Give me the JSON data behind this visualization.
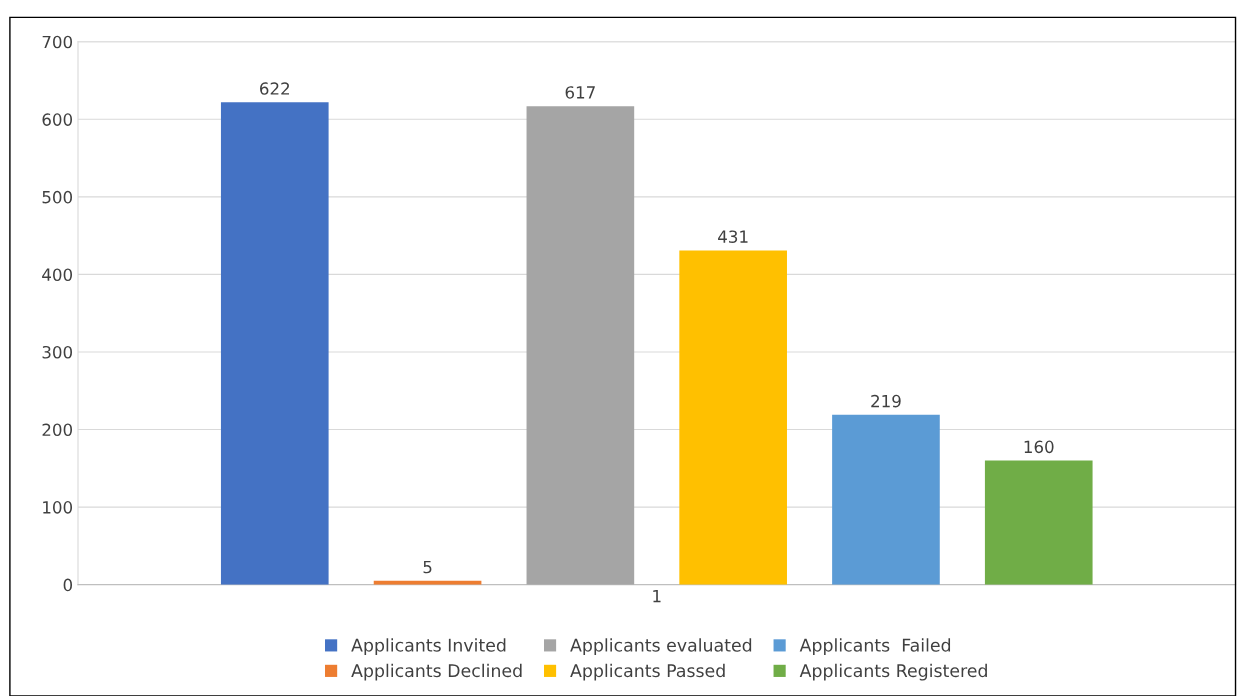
{
  "chart_data": {
    "type": "bar",
    "categories": [
      "1"
    ],
    "series": [
      {
        "name": "Applicants Invited",
        "color": "#4472c4",
        "values": [
          622
        ]
      },
      {
        "name": "Applicants Declined",
        "color": "#ed7d31",
        "values": [
          5
        ]
      },
      {
        "name": "Applicants evaluated",
        "color": "#a5a5a5",
        "values": [
          617
        ]
      },
      {
        "name": "Applicants Passed",
        "color": "#ffc000",
        "values": [
          431
        ]
      },
      {
        "name": "Applicants  Failed",
        "color": "#5b9bd5",
        "values": [
          219
        ]
      },
      {
        "name": "Applicants Registered",
        "color": "#70ad47",
        "values": [
          160
        ]
      }
    ],
    "ylim": [
      0,
      700
    ],
    "yticks": [
      0,
      100,
      200,
      300,
      400,
      500,
      600,
      700
    ],
    "grid": "y",
    "legend": "bottom",
    "data_labels": true
  }
}
